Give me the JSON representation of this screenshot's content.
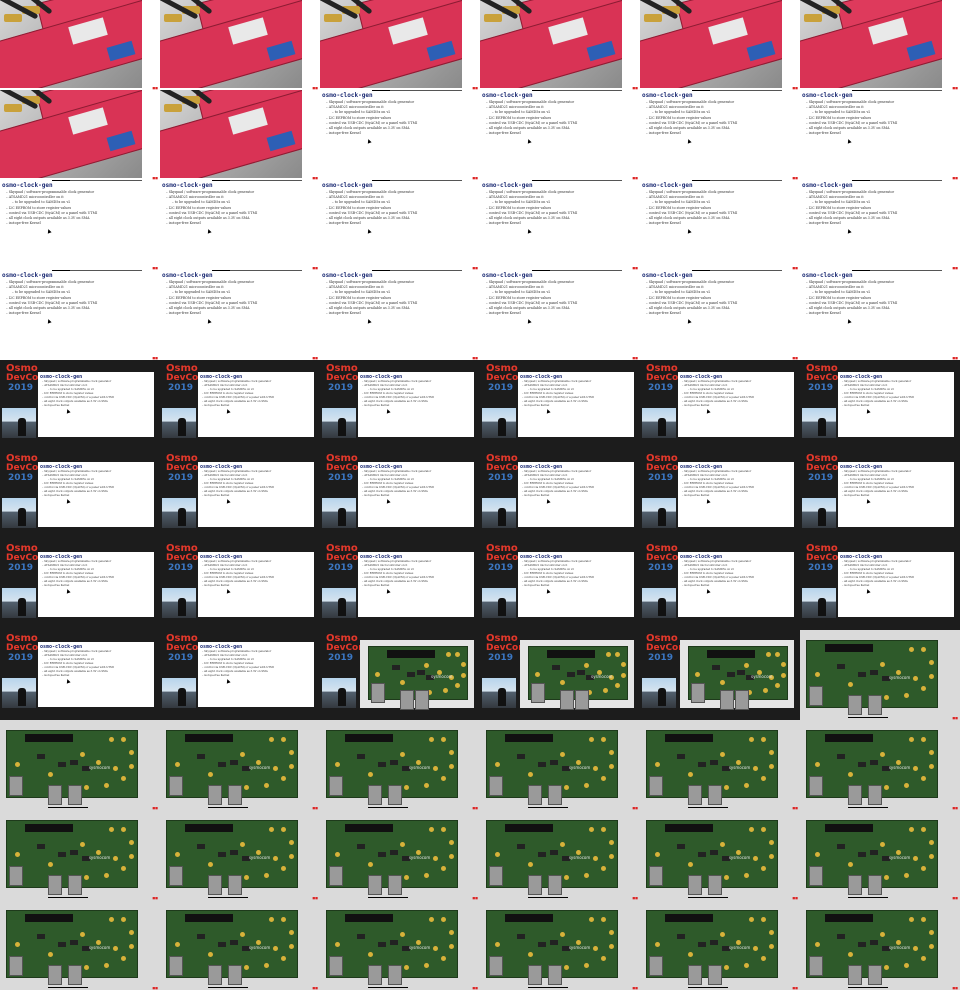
{
  "grid": {
    "columns": 6,
    "rows": 11
  },
  "slide": {
    "title": "osmo-clock-gen",
    "bullets": [
      {
        "text": "Skyquad / software-programmable clock generator",
        "sub": false
      },
      {
        "text": "ATSAMD21 microcontroller on it",
        "sub": false
      },
      {
        "text": "to be upgraded to SAMD5x on v2",
        "sub": true
      },
      {
        "text": "I2C EEPROM to store register values",
        "sub": false
      },
      {
        "text": "control via USB-CDC (ttyACM) or a panel with UTMI",
        "sub": false
      },
      {
        "text": "all eight clock outputs available as 3.3V on SMA",
        "sub": false
      },
      {
        "text": "isotope-free Kernel",
        "sub": false
      }
    ]
  },
  "conference": {
    "logo_line1": "Osmo",
    "logo_line2": "DevCon",
    "logo_year": "2019"
  },
  "pcb": {
    "silk": "sysmocom"
  },
  "tiles": [
    "photo",
    "photo",
    "photo",
    "photo",
    "photo",
    "photo",
    "photo",
    "photo",
    "slide",
    "slide",
    "slide",
    "slide",
    "slide",
    "slide",
    "slide",
    "slide",
    "slide",
    "slide",
    "slide",
    "slide",
    "slide",
    "slide",
    "slide",
    "slide",
    "conf",
    "conf",
    "conf",
    "conf",
    "conf",
    "conf",
    "conf",
    "conf",
    "conf",
    "conf",
    "conf",
    "conf",
    "conf",
    "conf",
    "conf",
    "conf",
    "conf",
    "conf",
    "conf",
    "conf",
    "confpcb",
    "confpcb",
    "confpcb",
    "pcb",
    "pcb",
    "pcb",
    "pcb",
    "pcb",
    "pcb",
    "pcb",
    "pcb",
    "pcb",
    "pcb",
    "pcb",
    "pcb",
    "pcb",
    "pcb",
    "pcb",
    "pcb",
    "pcb",
    "pcb",
    "pcb"
  ],
  "colors": {
    "brand_red": "#e6382b",
    "brand_blue": "#3b77c3",
    "slide_title": "#1b2a73",
    "pcb_green": "#2e5a2a"
  }
}
